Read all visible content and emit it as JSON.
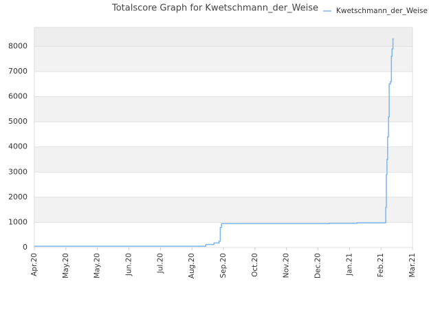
{
  "chart_data": {
    "type": "line",
    "title": "Totalscore Graph for Kwetschmann_der_Weise",
    "step": true,
    "x": [
      0,
      5.44,
      5.7,
      5.86,
      5.9,
      5.94,
      9.36,
      10.24,
      11.14,
      11.15,
      11.17,
      11.19,
      11.21,
      11.24,
      11.26,
      11.3,
      11.33,
      11.35,
      11.38
    ],
    "series": [
      {
        "name": "Kwetschmann_der_Weise",
        "color": "#7cb5ec",
        "values": [
          50,
          120,
          180,
          250,
          800,
          950,
          960,
          980,
          1000,
          1600,
          2900,
          3500,
          4400,
          5200,
          6500,
          6600,
          7600,
          7900,
          8300
        ]
      }
    ],
    "xlim": [
      0,
      12
    ],
    "xticks": [
      {
        "value": 0,
        "label": "Apr.20"
      },
      {
        "value": 1,
        "label": "May.20"
      },
      {
        "value": 2,
        "label": "May.20"
      },
      {
        "value": 3,
        "label": "Jun.20"
      },
      {
        "value": 4,
        "label": "Jul.20"
      },
      {
        "value": 5,
        "label": "Aug.20"
      },
      {
        "value": 6,
        "label": "Sep.20"
      },
      {
        "value": 7,
        "label": "Oct.20"
      },
      {
        "value": 8,
        "label": "Nov.20"
      },
      {
        "value": 9,
        "label": "Dec.20"
      },
      {
        "value": 10,
        "label": "Jan.21"
      },
      {
        "value": 11,
        "label": "Feb.21"
      },
      {
        "value": 12,
        "label": "Mar.21"
      }
    ],
    "ylim": [
      0,
      8750
    ],
    "yticks": [
      0,
      1000,
      2000,
      3000,
      4000,
      5000,
      6000,
      7000,
      8000
    ],
    "grid": true,
    "legend": "top-right"
  }
}
